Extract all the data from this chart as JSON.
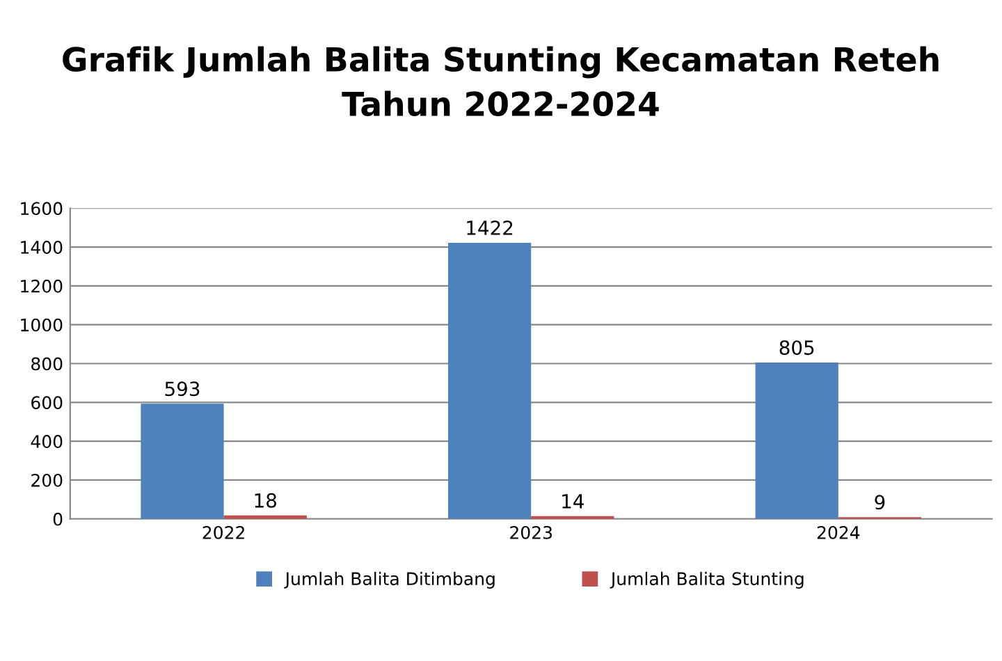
{
  "chart_data": {
    "type": "bar",
    "title": "Grafik Jumlah Balita Stunting Kecamatan Reteh\nTahun 2022-2024",
    "categories": [
      "2022",
      "2023",
      "2024"
    ],
    "series": [
      {
        "name": "Jumlah Balita Ditimbang",
        "color": "#4f81bd",
        "values": [
          593,
          1422,
          805
        ]
      },
      {
        "name": "Jumlah Balita Stunting",
        "color": "#c0504d",
        "values": [
          18,
          14,
          9
        ]
      }
    ],
    "ylim": [
      0,
      1600
    ],
    "yticks": [
      0,
      200,
      400,
      600,
      800,
      1000,
      1200,
      1400,
      1600
    ],
    "grid": "y",
    "legend": "bottom",
    "data_labels": true
  }
}
